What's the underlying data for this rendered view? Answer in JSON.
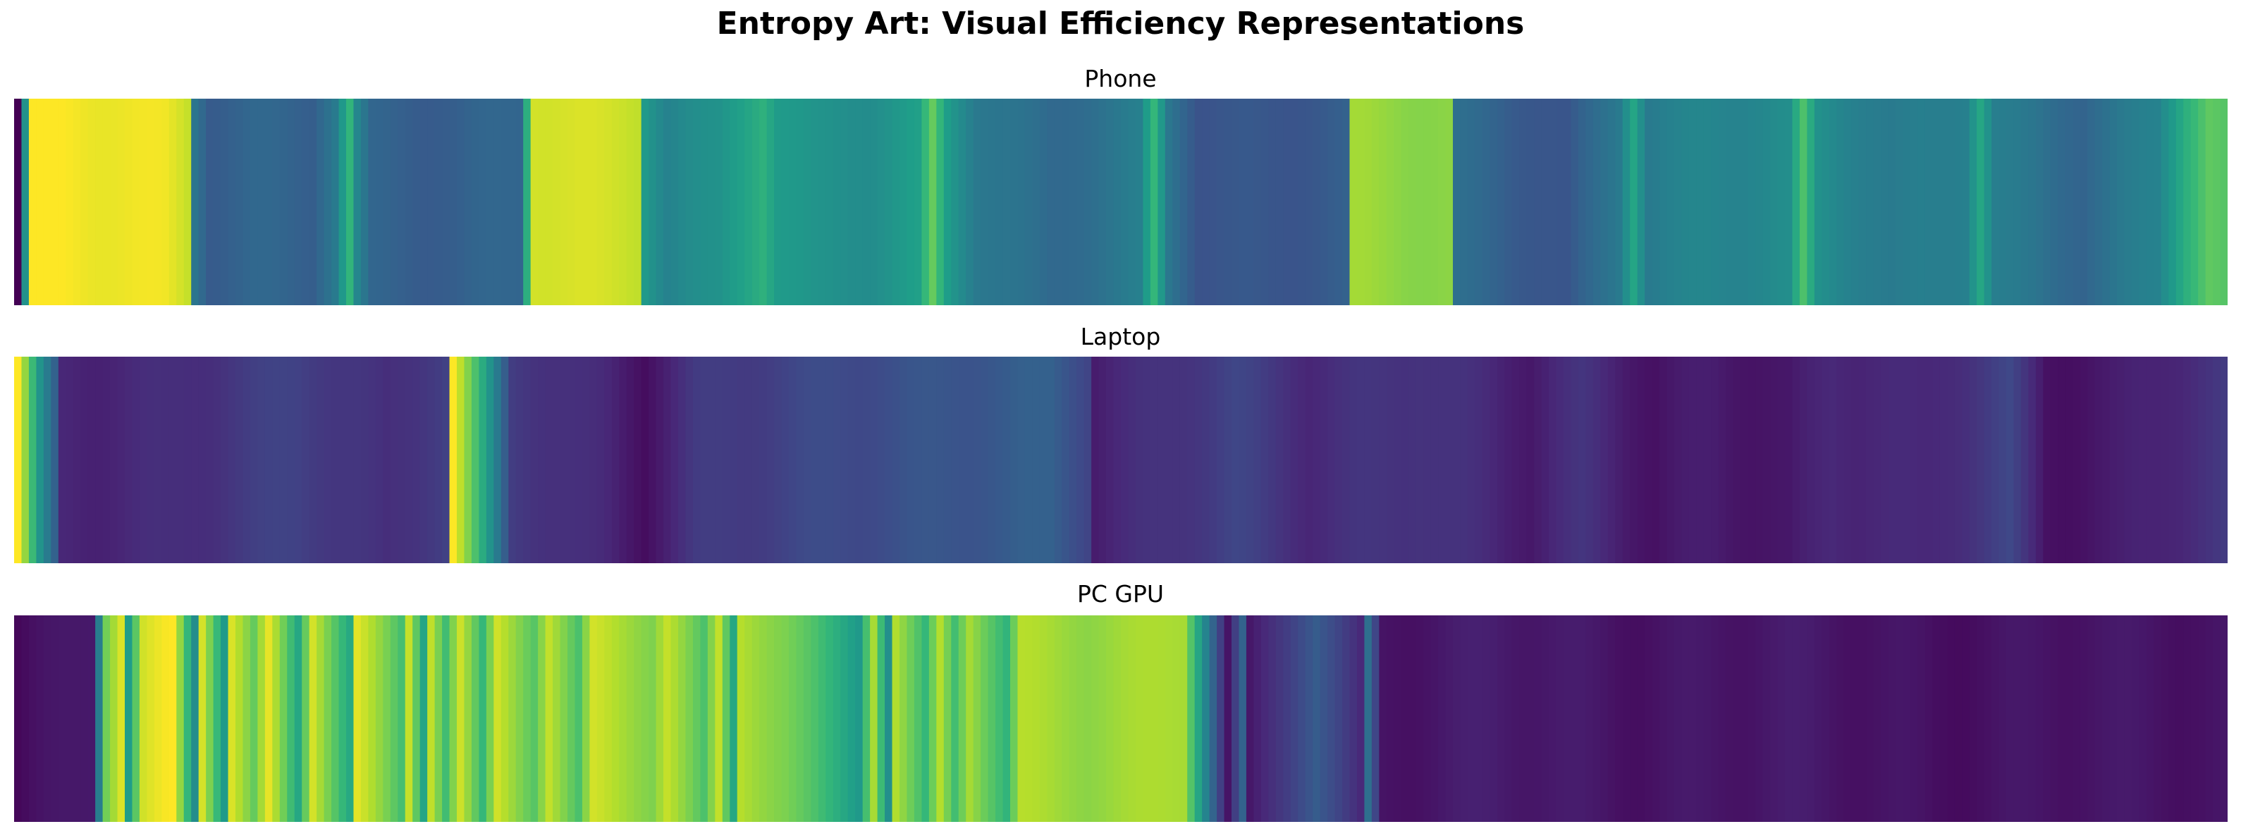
{
  "title": "Entropy Art: Visual Efficiency Representations",
  "chart_data": {
    "type": "heatmap",
    "colormap": "viridis",
    "axes_visible": false,
    "panels": [
      {
        "name": "Phone",
        "n_cells": 300,
        "range": [
          0,
          1
        ],
        "segments": [
          [
            0,
            0.0
          ],
          [
            2,
            1.0
          ],
          [
            20,
            0.97
          ],
          [
            23,
            0.92
          ],
          [
            24,
            0.4
          ],
          [
            26,
            0.3
          ],
          [
            32,
            0.32
          ],
          [
            40,
            0.31
          ],
          [
            43,
            0.42
          ],
          [
            45,
            0.65
          ],
          [
            46,
            0.45
          ],
          [
            48,
            0.31
          ],
          [
            54,
            0.3
          ],
          [
            60,
            0.3
          ],
          [
            68,
            0.33
          ],
          [
            70,
            0.95
          ],
          [
            84,
            0.92
          ],
          [
            85,
            0.55
          ],
          [
            88,
            0.45
          ],
          [
            95,
            0.5
          ],
          [
            101,
            0.65
          ],
          [
            103,
            0.55
          ],
          [
            108,
            0.5
          ],
          [
            116,
            0.5
          ],
          [
            122,
            0.55
          ],
          [
            124,
            0.75
          ],
          [
            126,
            0.55
          ],
          [
            130,
            0.42
          ],
          [
            140,
            0.33
          ],
          [
            152,
            0.42
          ],
          [
            154,
            0.65
          ],
          [
            156,
            0.4
          ],
          [
            160,
            0.27
          ],
          [
            170,
            0.26
          ],
          [
            180,
            0.3
          ],
          [
            181,
            0.85
          ],
          [
            194,
            0.82
          ],
          [
            195,
            0.35
          ],
          [
            210,
            0.25
          ],
          [
            217,
            0.42
          ],
          [
            219,
            0.6
          ],
          [
            221,
            0.42
          ],
          [
            228,
            0.45
          ],
          [
            240,
            0.48
          ],
          [
            242,
            0.7
          ],
          [
            244,
            0.5
          ],
          [
            254,
            0.4
          ],
          [
            264,
            0.45
          ],
          [
            266,
            0.6
          ],
          [
            268,
            0.42
          ],
          [
            280,
            0.33
          ],
          [
            290,
            0.45
          ],
          [
            294,
            0.65
          ],
          [
            297,
            0.75
          ],
          [
            299,
            0.72
          ]
        ]
      },
      {
        "name": "Laptop",
        "n_cells": 300,
        "range": [
          0,
          1
        ],
        "segments": [
          [
            0,
            1.0
          ],
          [
            3,
            0.5
          ],
          [
            5,
            0.3
          ],
          [
            6,
            0.1
          ],
          [
            20,
            0.12
          ],
          [
            38,
            0.2
          ],
          [
            50,
            0.12
          ],
          [
            58,
            0.2
          ],
          [
            59,
            1.0
          ],
          [
            65,
            0.4
          ],
          [
            67,
            0.18
          ],
          [
            80,
            0.1
          ],
          [
            85,
            0.05
          ],
          [
            92,
            0.16
          ],
          [
            110,
            0.22
          ],
          [
            140,
            0.3
          ],
          [
            145,
            0.22
          ],
          [
            146,
            0.09
          ],
          [
            160,
            0.17
          ],
          [
            165,
            0.2
          ],
          [
            175,
            0.12
          ],
          [
            190,
            0.16
          ],
          [
            205,
            0.08
          ],
          [
            212,
            0.14
          ],
          [
            222,
            0.05
          ],
          [
            230,
            0.08
          ],
          [
            240,
            0.05
          ],
          [
            246,
            0.12
          ],
          [
            258,
            0.1
          ],
          [
            270,
            0.2
          ],
          [
            275,
            0.05
          ],
          [
            285,
            0.07
          ],
          [
            299,
            0.16
          ]
        ]
      },
      {
        "name": "PC GPU",
        "n_cells": 300,
        "range": [
          0,
          1
        ],
        "segments": [
          [
            0,
            0.02
          ],
          [
            10,
            0.08
          ],
          [
            12,
            0.8
          ],
          [
            14,
            0.95
          ],
          [
            15,
            0.55
          ],
          [
            17,
            0.92
          ],
          [
            21,
            1.0
          ],
          [
            24,
            0.5
          ],
          [
            25,
            0.95
          ],
          [
            28,
            0.55
          ],
          [
            29,
            0.95
          ],
          [
            32,
            0.75
          ],
          [
            34,
            0.95
          ],
          [
            38,
            0.6
          ],
          [
            40,
            0.95
          ],
          [
            45,
            0.6
          ],
          [
            46,
            0.95
          ],
          [
            52,
            0.7
          ],
          [
            53,
            0.92
          ],
          [
            55,
            0.6
          ],
          [
            56,
            0.92
          ],
          [
            58,
            0.7
          ],
          [
            60,
            0.92
          ],
          [
            63,
            0.65
          ],
          [
            65,
            0.92
          ],
          [
            70,
            0.75
          ],
          [
            72,
            0.92
          ],
          [
            76,
            0.7
          ],
          [
            78,
            0.92
          ],
          [
            86,
            0.82
          ],
          [
            88,
            0.92
          ],
          [
            93,
            0.7
          ],
          [
            95,
            0.9
          ],
          [
            97,
            0.6
          ],
          [
            98,
            0.9
          ],
          [
            104,
            0.8
          ],
          [
            114,
            0.55
          ],
          [
            116,
            0.88
          ],
          [
            118,
            0.5
          ],
          [
            119,
            0.88
          ],
          [
            123,
            0.65
          ],
          [
            125,
            0.88
          ],
          [
            127,
            0.7
          ],
          [
            129,
            0.88
          ],
          [
            134,
            0.65
          ],
          [
            136,
            0.88
          ],
          [
            145,
            0.84
          ],
          [
            158,
            0.88
          ],
          [
            164,
            0.05
          ],
          [
            166,
            0.3
          ],
          [
            167,
            0.05
          ],
          [
            176,
            0.3
          ],
          [
            182,
            0.1
          ],
          [
            183,
            0.35
          ],
          [
            185,
            0.05
          ],
          [
            200,
            0.08
          ],
          [
            220,
            0.05
          ],
          [
            240,
            0.07
          ],
          [
            260,
            0.04
          ],
          [
            280,
            0.06
          ],
          [
            299,
            0.05
          ]
        ]
      }
    ]
  }
}
